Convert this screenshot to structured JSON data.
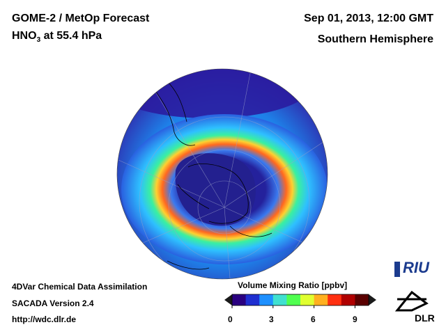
{
  "header": {
    "title_left_1": "GOME-2 / MetOp Forecast",
    "title_left_2_main": "HNO",
    "title_left_2_sub": "3",
    "title_left_2_rest": " at 55.4 hPa",
    "title_right_1": "Sep 01, 2013, 12:00 GMT",
    "title_right_2": "Southern Hemisphere"
  },
  "footer": {
    "line1": "4DVar Chemical Data Assimilation",
    "line2": "SACADA Version 2.4",
    "line3": "http://wdc.dlr.de"
  },
  "colorbar": {
    "title": "Volume Mixing Ratio [ppbv]",
    "ticks": [
      "0",
      "3",
      "6",
      "9"
    ],
    "range": [
      0,
      10
    ],
    "colors": [
      "#2a0080",
      "#1f2fd0",
      "#1e90ff",
      "#40e0d0",
      "#50ff50",
      "#e0ff30",
      "#ffb020",
      "#ff3010",
      "#b00000",
      "#5a0000"
    ]
  },
  "logos": {
    "riu": "RIU",
    "dlr": "DLR"
  },
  "map": {
    "projection": "orthographic",
    "hemisphere": "south",
    "background_color": "#1a1a9a"
  }
}
